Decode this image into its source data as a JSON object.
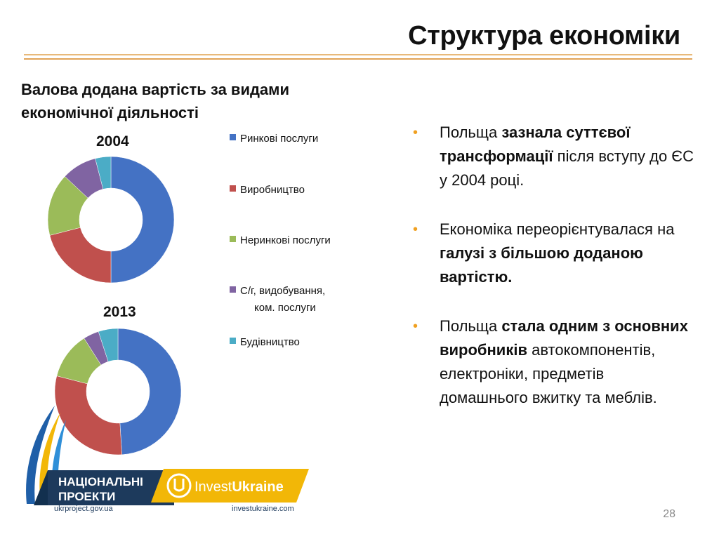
{
  "slide": {
    "title": "Структура економіки",
    "subtitle_line1": "Валова додана вартість за видами",
    "subtitle_line2": "економічної діяльності",
    "page_number": "28"
  },
  "chart_data": [
    {
      "type": "pie",
      "title": "2004",
      "donut": true,
      "categories": [
        "Ринкові послуги",
        "Виробництво",
        "Неринкові послуги",
        "С/г, видобування, ком. послуги",
        "Будівництво"
      ],
      "values": [
        50,
        21,
        16,
        9,
        4
      ],
      "colors": [
        "#4472c4",
        "#c0504d",
        "#9bbb59",
        "#8064a2",
        "#4bacc6"
      ]
    },
    {
      "type": "pie",
      "title": "2013",
      "donut": true,
      "categories": [
        "Ринкові послуги",
        "Виробництво",
        "Неринкові послуги",
        "С/г, видобування, ком. послуги",
        "Будівництво"
      ],
      "values": [
        49,
        30,
        12,
        4,
        5
      ],
      "colors": [
        "#4472c4",
        "#c0504d",
        "#9bbb59",
        "#8064a2",
        "#4bacc6"
      ]
    }
  ],
  "legend": [
    {
      "line1": "Ринкові послуги",
      "line2": "",
      "color": "#4472c4"
    },
    {
      "line1": "Виробництво",
      "line2": "",
      "color": "#c0504d"
    },
    {
      "line1": "Неринкові послуги",
      "line2": "",
      "color": "#9bbb59"
    },
    {
      "line1": "С/г, видобування,",
      "line2": "ком. послуги",
      "color": "#8064a2"
    },
    {
      "line1": "Будівництво",
      "line2": "",
      "color": "#4bacc6"
    }
  ],
  "bullets": [
    {
      "parts": [
        {
          "text": "Польща ",
          "bold": false
        },
        {
          "text": "зазнала суттєвої трансформації",
          "bold": true
        },
        {
          "text": " після вступу до ЄС у 2004 році.",
          "bold": false
        }
      ]
    },
    {
      "parts": [
        {
          "text": "Економіка переорієнтувалася на ",
          "bold": false
        },
        {
          "text": "галузі з більшою доданою вартістю.",
          "bold": true
        }
      ]
    },
    {
      "parts": [
        {
          "text": "Польща ",
          "bold": false
        },
        {
          "text": "стала одним з основних виробників",
          "bold": true
        },
        {
          "text": " автокомпонентів, електроніки, предметів домашнього вжитку та меблів.",
          "bold": false
        }
      ]
    }
  ],
  "logos": {
    "np_line1": "НАЦІОНАЛЬНІ",
    "np_line2": "ПРОЕКТИ",
    "np_url": "ukrproject.gov.ua",
    "iu_word1": "Invest",
    "iu_word2": "Ukraine",
    "iu_url": "investukraine.com"
  },
  "colors": {
    "accent": "#f0a020",
    "rule": "#e0a256",
    "navy": "#1d3a5c"
  }
}
